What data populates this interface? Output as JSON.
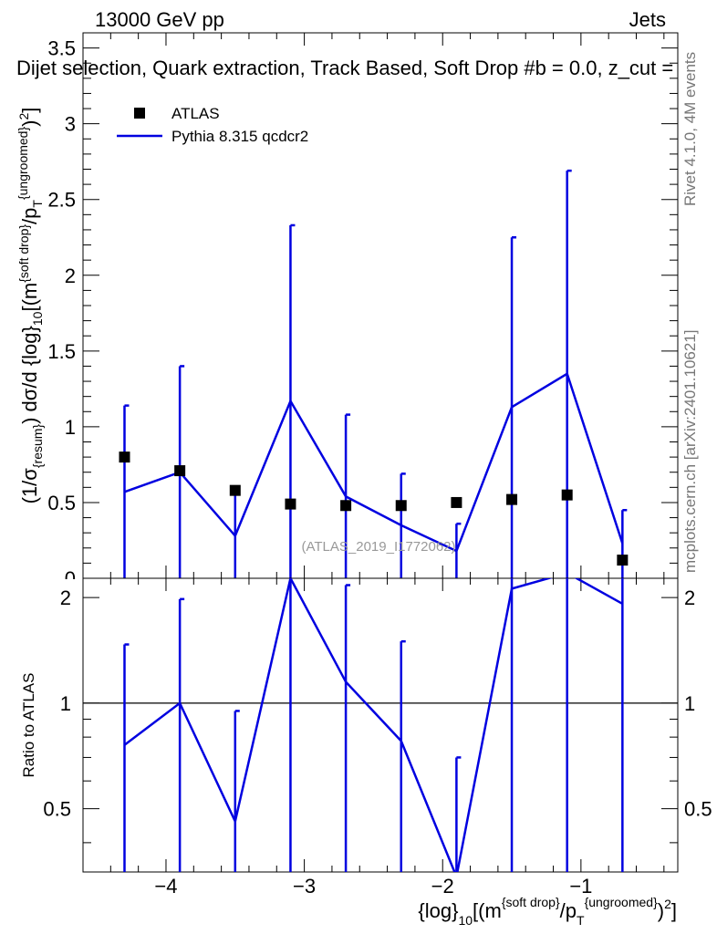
{
  "header": {
    "left": "13000 GeV pp",
    "right": "Jets",
    "title": "Dijet selection, Quark extraction, Track Based, Soft Drop #b = 0.0, z_cut ="
  },
  "side_text": {
    "rivet": "Rivet 4.1.0,  4M events",
    "mcplots": "mcplots.cern.ch [arXiv:2401.10621]"
  },
  "watermark": "(ATLAS_2019_I1772062)",
  "colors": {
    "mc": "#0000e0",
    "data": "#000000"
  },
  "chart_data": [
    {
      "panel": "main",
      "type": "line",
      "ylabel": "(1/σ_{resum}) dσ/d {log}_10[(m^{soft drop}/p_T^{ungroomed})^2]",
      "xlim": [
        -4.6,
        -0.3
      ],
      "ylim": [
        0,
        3.6
      ],
      "yticks": [
        0.5,
        1,
        1.5,
        2,
        2.5,
        3,
        3.5
      ],
      "ytick_labels": [
        "0.5",
        "1",
        "1.5",
        "2",
        "2.5",
        "3",
        "3.5"
      ],
      "yticks_cut": [
        0
      ],
      "ytick_cut_labels": [
        "0"
      ],
      "legend": {
        "placement": "top-left",
        "entries": [
          "ATLAS",
          "Pythia 8.315 qcdcr2"
        ]
      },
      "x": [
        -4.3,
        -3.9,
        -3.5,
        -3.1,
        -2.7,
        -2.3,
        -1.9,
        -1.5,
        -1.1,
        -0.7
      ],
      "series": [
        {
          "name": "ATLAS",
          "style": "markers",
          "values": [
            0.8,
            0.71,
            0.58,
            0.49,
            0.48,
            0.48,
            0.5,
            0.52,
            0.55,
            0.12
          ]
        },
        {
          "name": "Pythia 8.315 qcdcr2",
          "style": "line",
          "values": [
            0.57,
            0.7,
            0.28,
            1.17,
            0.54,
            0.35,
            0.18,
            1.13,
            1.35,
            0.23
          ],
          "err_low": [
            0.0,
            0.0,
            0.0,
            0.0,
            0.0,
            0.0,
            0.0,
            0.0,
            0.0,
            0.0
          ],
          "err_high": [
            1.14,
            1.4,
            0.57,
            2.33,
            1.08,
            0.69,
            0.36,
            2.25,
            2.69,
            0.45
          ]
        }
      ]
    },
    {
      "panel": "ratio",
      "type": "line",
      "ylabel": "Ratio to ATLAS",
      "xlabel": "{log}_10[(m^{soft drop}/p_T^{ungroomed})^2]",
      "xlim": [
        -4.6,
        -0.3
      ],
      "ylim": [
        0.33,
        2.27
      ],
      "xticks": [
        -4,
        -3,
        -2,
        -1
      ],
      "xtick_labels": [
        "−4",
        "−3",
        "−2",
        "−1"
      ],
      "yticks": [
        0.5,
        1,
        2
      ],
      "ytick_labels": [
        "0.5",
        "1",
        "2"
      ],
      "reference_line": 1,
      "x": [
        -4.3,
        -3.9,
        -3.5,
        -3.1,
        -2.7,
        -2.3,
        -1.9,
        -1.5,
        -1.1,
        -0.7
      ],
      "series": [
        {
          "name": "Pythia 8.315 qcdcr2 / ATLAS",
          "values": [
            0.76,
            1.0,
            0.46,
            2.27,
            1.15,
            0.78,
            0.32,
            2.12,
            2.35,
            1.92
          ],
          "err_low": [
            0.0,
            0.0,
            0.0,
            0.0,
            0.0,
            0.0,
            0.0,
            0.0,
            0.0,
            0.0
          ],
          "err_high": [
            1.47,
            1.98,
            0.95,
            2.27,
            2.17,
            1.5,
            0.7,
            2.27,
            2.27,
            2.27
          ]
        }
      ]
    }
  ]
}
